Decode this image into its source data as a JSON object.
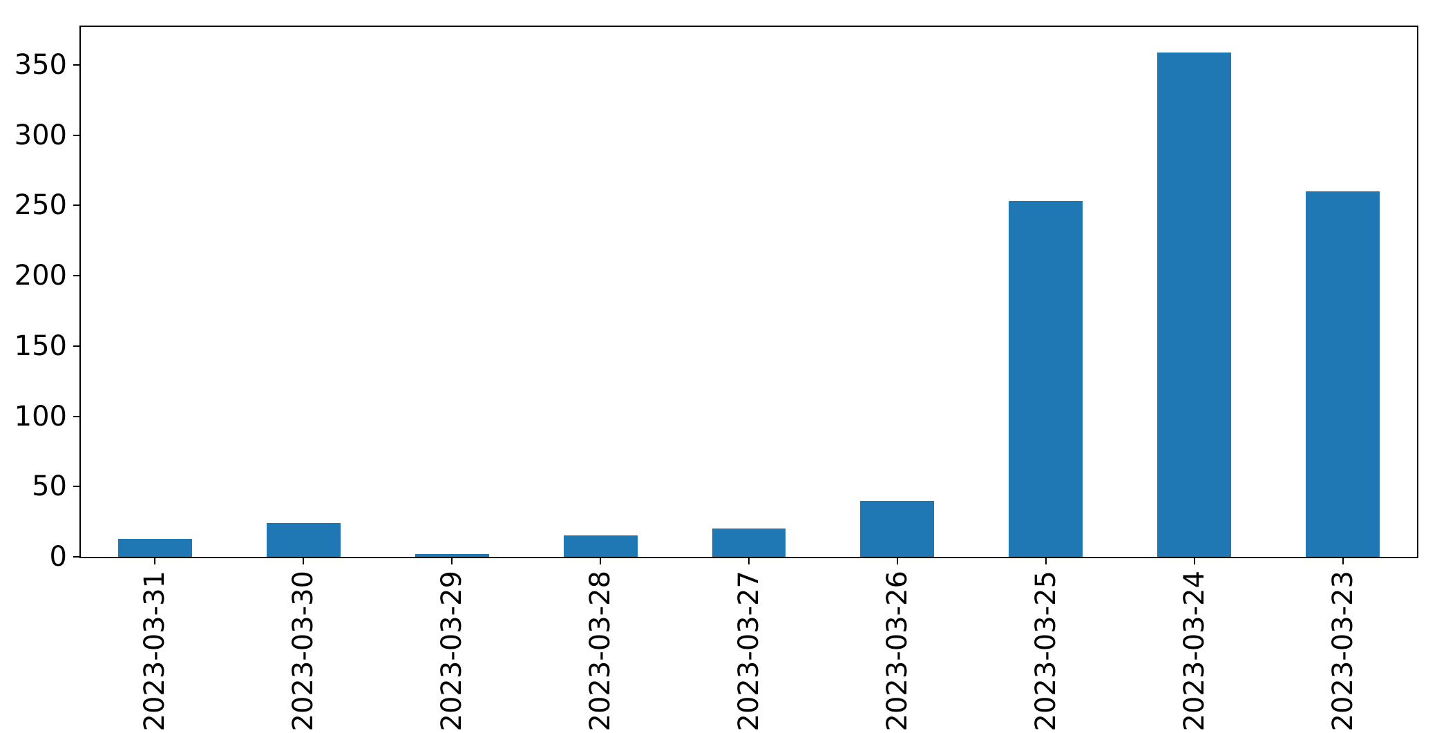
{
  "chart_data": {
    "type": "bar",
    "categories": [
      "2023-03-31",
      "2023-03-30",
      "2023-03-29",
      "2023-03-28",
      "2023-03-27",
      "2023-03-26",
      "2023-03-25",
      "2023-03-24",
      "2023-03-23"
    ],
    "values": [
      13,
      24,
      2,
      15,
      20,
      40,
      253,
      359,
      260
    ],
    "title": "",
    "xlabel": "",
    "ylabel": "",
    "ylim": [
      0,
      377
    ],
    "yticks": [
      0,
      50,
      100,
      150,
      200,
      250,
      300,
      350
    ],
    "ytick_labels": [
      "0",
      "50",
      "100",
      "150",
      "200",
      "250",
      "300",
      "350"
    ],
    "xtick_label_rotation_deg": 90,
    "grid": false,
    "legend": false,
    "bar_color": "#1f77b4"
  },
  "colors": {
    "bar": "#1f77b4",
    "background": "#ffffff",
    "spine": "#000000",
    "text": "#000000"
  }
}
